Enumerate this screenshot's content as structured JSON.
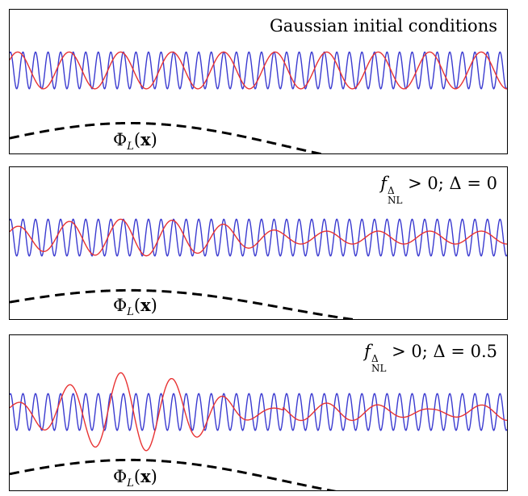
{
  "panels": [
    {
      "label": "Gaussian initial conditions",
      "phi_label": "Φ",
      "phi_sub": "L",
      "phi_arg": "x"
    },
    {
      "label_f": "f",
      "label_sup": "Δ",
      "label_sub": "NL",
      "label_rest": " > 0;  Δ = 0",
      "phi_label": "Φ",
      "phi_sub": "L",
      "phi_arg": "x"
    },
    {
      "label_f": "f",
      "label_sup": "Δ",
      "label_sub": "NL",
      "label_rest": " > 0;  Δ = 0.5",
      "phi_label": "Φ",
      "phi_sub": "L",
      "phi_arg": "x"
    }
  ],
  "colors": {
    "short_wave": "#3a3ad0",
    "long_wave": "#e83232",
    "potential": "#000000"
  }
}
